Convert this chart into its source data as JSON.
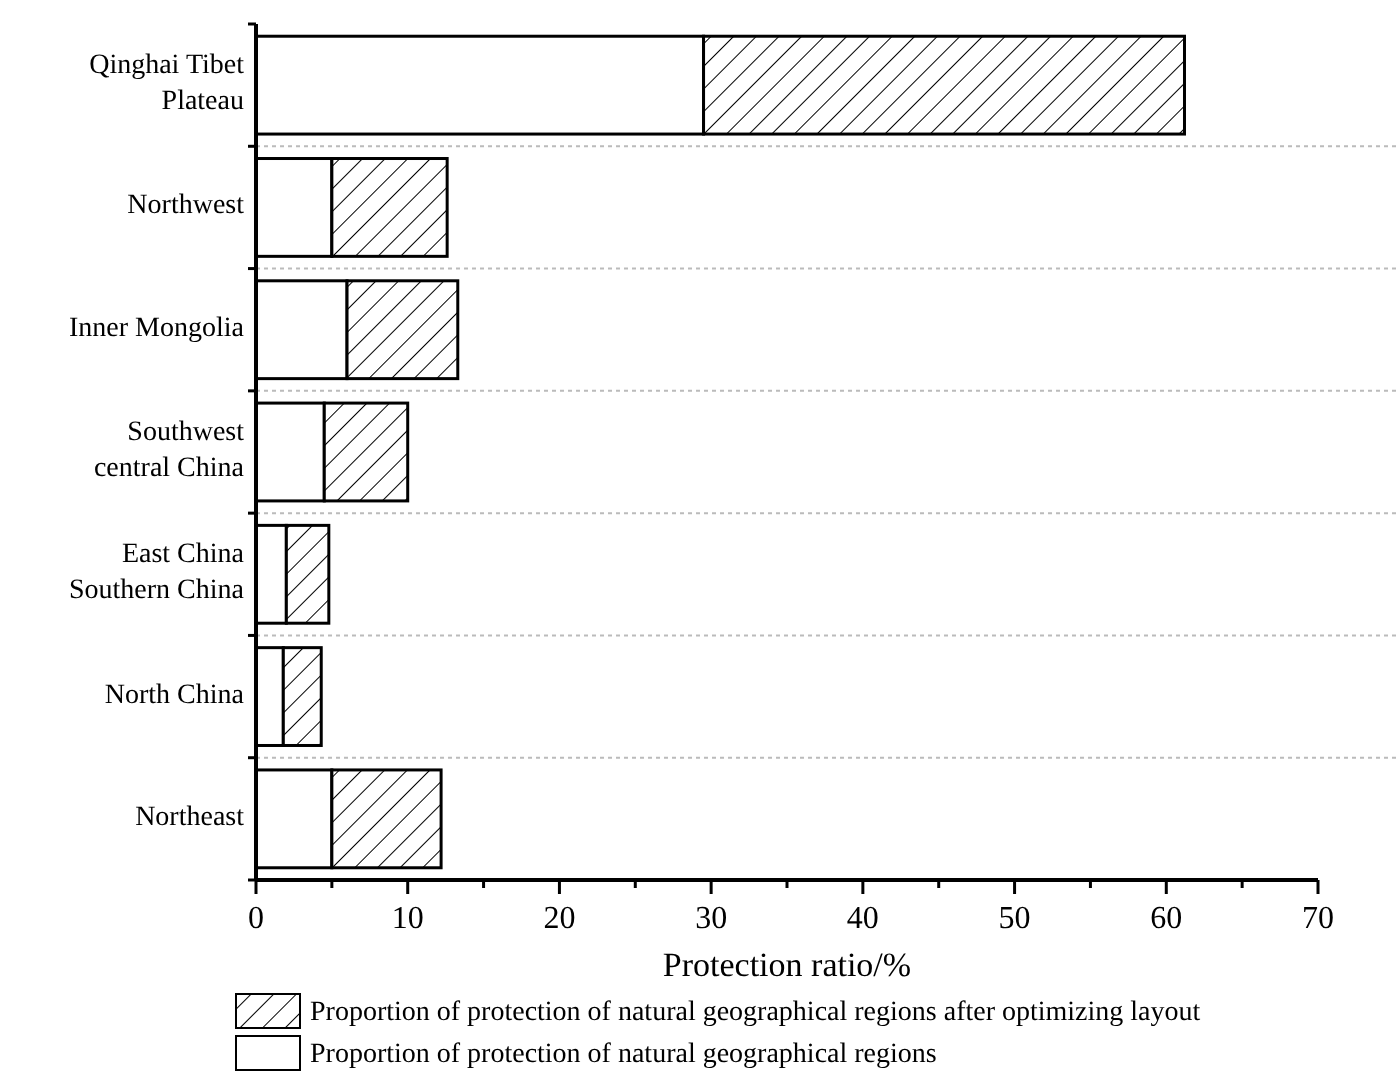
{
  "chart_data": {
    "type": "bar",
    "orientation": "horizontal",
    "stacked": true,
    "xlabel": "Protection ratio/%",
    "categories": [
      "Qinghai Tibet Plateau",
      "Northwest",
      "Inner Mongolia",
      "Southwest central China",
      "East China Southern China",
      "North China",
      "Northeast"
    ],
    "series": [
      {
        "name": "Proportion of protection of natural geographical regions",
        "color": "#ffffff",
        "values": [
          29.5,
          5.0,
          6.0,
          4.5,
          2.0,
          1.8,
          5.0
        ]
      },
      {
        "name": "Proportion of protection of natural geographical regions after optimizing layout",
        "color": "#000000",
        "values": [
          31.7,
          7.6,
          7.3,
          5.5,
          2.8,
          2.5,
          7.2
        ]
      }
    ],
    "xlim": [
      0,
      70
    ],
    "xticks": [
      0,
      {
        "value": 5,
        "label": null
      },
      10,
      {
        "value": 15,
        "label": null
      },
      20,
      {
        "value": 25,
        "label": null
      },
      30,
      {
        "value": 35,
        "label": null
      },
      40,
      {
        "value": 45,
        "label": null
      },
      50,
      {
        "value": 55,
        "label": null
      },
      60,
      {
        "value": 65,
        "label": null
      },
      70
    ],
    "grid": "y",
    "legend": "bottom"
  }
}
